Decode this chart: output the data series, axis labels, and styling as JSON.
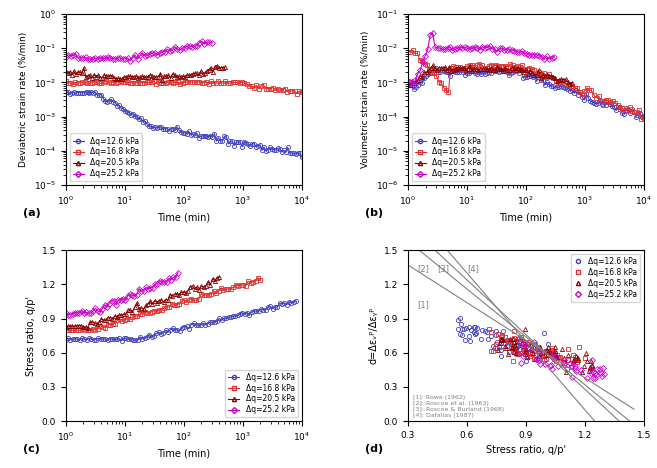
{
  "colors": {
    "blue": "#4040c0",
    "red": "#e03030",
    "darkred": "#8b0000",
    "magenta": "#cc00cc"
  },
  "legend_labels": [
    "Δq=12.6 kPa",
    "Δq=16.8 kPa",
    "Δq=20.5 kPa",
    "Δq=25.2 kPa"
  ],
  "panel_labels": [
    "(a)",
    "(b)",
    "(c)",
    "(d)"
  ],
  "subplot_titles": [
    "",
    "",
    "",
    ""
  ],
  "ax_a": {
    "xlabel": "Time (min)",
    "ylabel": "Deviatoric strain rate (%/min)",
    "xlim": [
      1,
      10000
    ],
    "ylim": [
      1e-05,
      1
    ]
  },
  "ax_b": {
    "xlabel": "Time (min)",
    "ylabel": "Volumetric strain rate (%/min)",
    "xlim": [
      1,
      10000
    ],
    "ylim": [
      1e-06,
      0.1
    ]
  },
  "ax_c": {
    "xlabel": "Time (min)",
    "ylabel": "Stress ratio, q/p'",
    "xlim": [
      1,
      10000
    ],
    "ylim": [
      0,
      1.5
    ]
  },
  "ax_d": {
    "xlabel": "Stress ratio, q/p'",
    "ylabel": "d=Δεᵥᵖ/Δεᵧᵖ",
    "xlim": [
      0.3,
      1.5
    ],
    "ylim": [
      0,
      1.5
    ]
  },
  "curve_lines_labels": [
    "[1]: Rowe (1962)",
    "[2]: Roscoe et al. (1963)",
    "[3]: Roscoe & Burland (1968)",
    "[4]: Dafalias (1987)"
  ],
  "curve_bracket_labels": [
    "[2]",
    "[3]",
    "[4]",
    "[1]"
  ]
}
